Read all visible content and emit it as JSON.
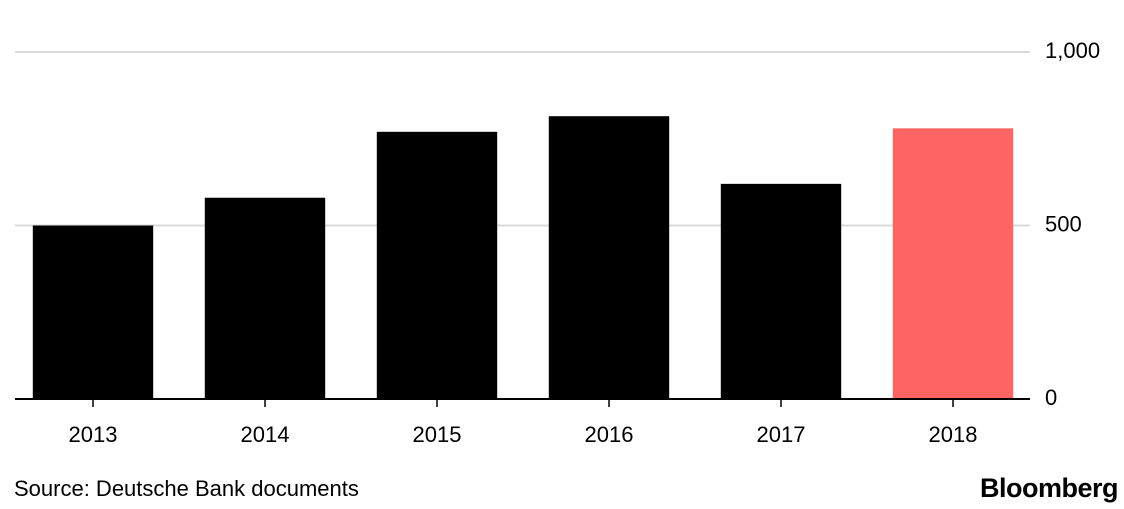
{
  "chart_data": {
    "type": "bar",
    "categories": [
      "2013",
      "2014",
      "2015",
      "2016",
      "2017",
      "2018"
    ],
    "values": [
      500,
      580,
      770,
      815,
      620,
      780
    ],
    "colors": [
      "#000000",
      "#000000",
      "#000000",
      "#000000",
      "#000000",
      "#ff6464"
    ],
    "ylim": [
      0,
      1000
    ],
    "yticks": [
      0,
      500,
      {
        "value": 1000,
        "label": "1,000"
      }
    ],
    "grid": true,
    "source": "Source: Deutsche Bank documents",
    "brand": "Bloomberg"
  }
}
